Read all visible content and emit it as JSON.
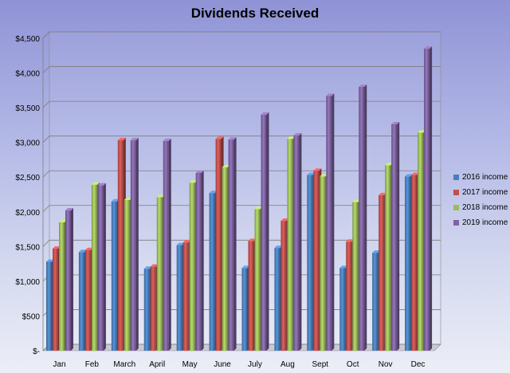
{
  "chart_data": {
    "type": "bar",
    "title": "Dividends Received",
    "xlabel": "",
    "ylabel": "",
    "categories": [
      "Jan",
      "Feb",
      "March",
      "April",
      "May",
      "June",
      "July",
      "Aug",
      "Sept",
      "Oct",
      "Nov",
      "Dec"
    ],
    "ylim": [
      0,
      4500
    ],
    "y_ticks": [
      0,
      500,
      1000,
      1500,
      2000,
      2500,
      3000,
      3500,
      4000,
      4500
    ],
    "y_tick_labels": [
      "$-",
      "$500",
      "$1,000",
      "$1,500",
      "$2,000",
      "$2,500",
      "$3,000",
      "$3,500",
      "$4,000",
      "$4,500"
    ],
    "grid": true,
    "legend_position": "right",
    "series": [
      {
        "name": "2016 income",
        "color": "#4a7ebb",
        "values": [
          1280,
          1420,
          2150,
          1180,
          1520,
          2270,
          1190,
          1480,
          2530,
          1190,
          1410,
          2510
        ]
      },
      {
        "name": "2017 income",
        "color": "#c0504d",
        "values": [
          1470,
          1450,
          3030,
          1210,
          1560,
          3050,
          1580,
          1870,
          2590,
          1570,
          2240,
          2530
        ]
      },
      {
        "name": "2018 income",
        "color": "#9bbb59",
        "values": [
          1850,
          2390,
          2170,
          2210,
          2420,
          2640,
          2040,
          3050,
          2510,
          2140,
          2670,
          3140
        ]
      },
      {
        "name": "2019 income",
        "color": "#8064a2",
        "values": [
          2020,
          2380,
          3030,
          3020,
          2560,
          3040,
          3400,
          3100,
          3670,
          3800,
          3260,
          4350
        ]
      }
    ]
  }
}
